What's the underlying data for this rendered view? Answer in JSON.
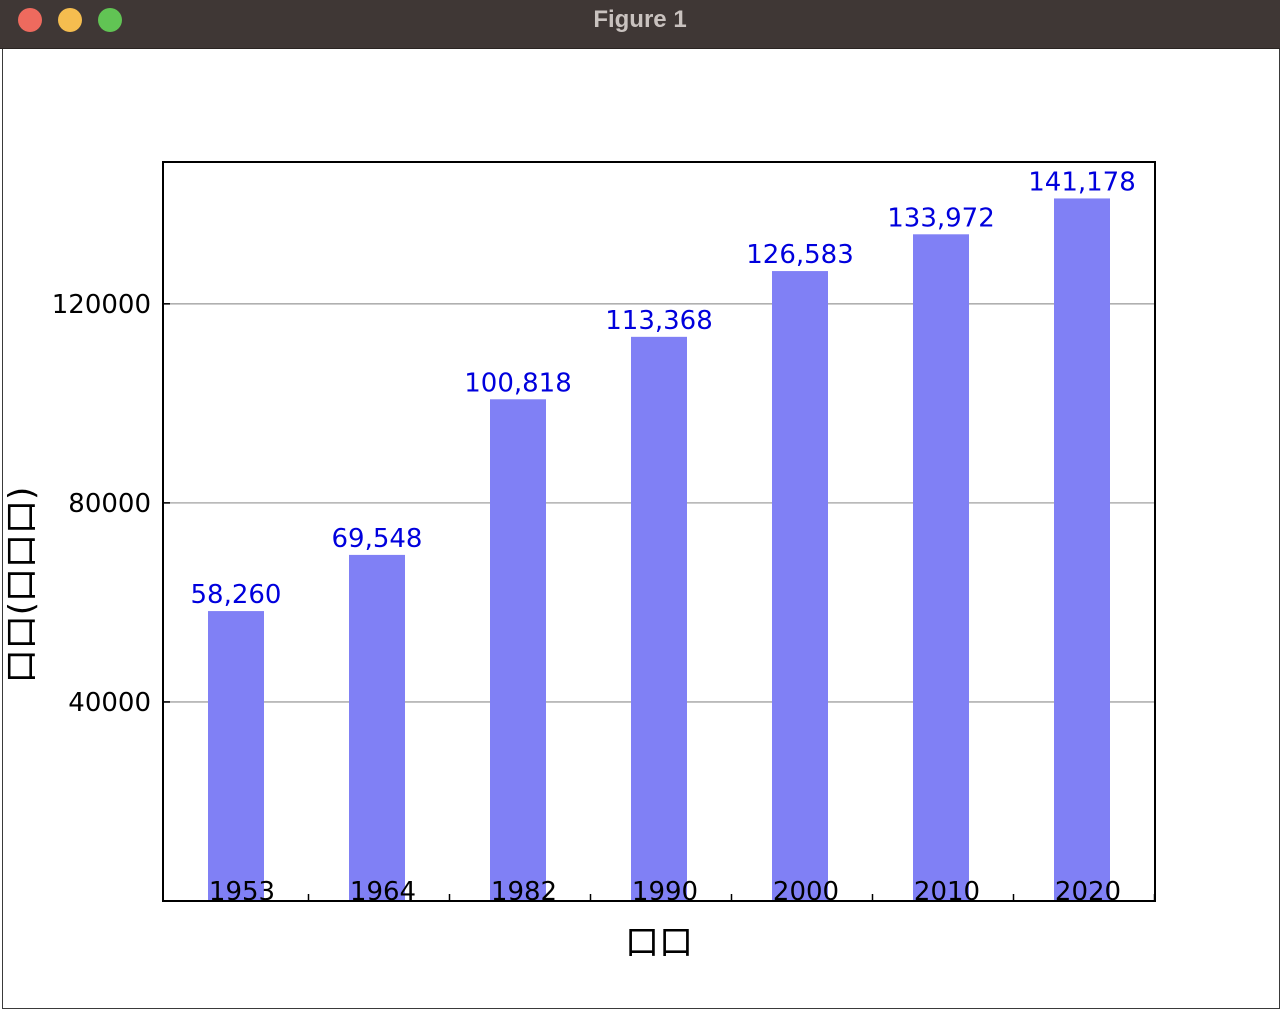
{
  "window": {
    "title": "Figure 1"
  },
  "chart_data": {
    "type": "bar",
    "categories": [
      "1953",
      "1964",
      "1982",
      "1990",
      "2000",
      "2010",
      "2020"
    ],
    "values": [
      58260,
      69548,
      100818,
      113368,
      126583,
      133972,
      141178
    ],
    "value_labels": [
      "58,260",
      "69,548",
      "100,818",
      "113,368",
      "126,583",
      "133,972",
      "141,178"
    ],
    "title": "",
    "xlabel": "口口",
    "ylabel": "口口(口口口)",
    "ylim": [
      0,
      148500
    ],
    "yticks": [
      40000,
      80000,
      120000
    ],
    "grid": "horizontal",
    "bar_color": "#8080f5",
    "label_color": "#0000dd"
  }
}
